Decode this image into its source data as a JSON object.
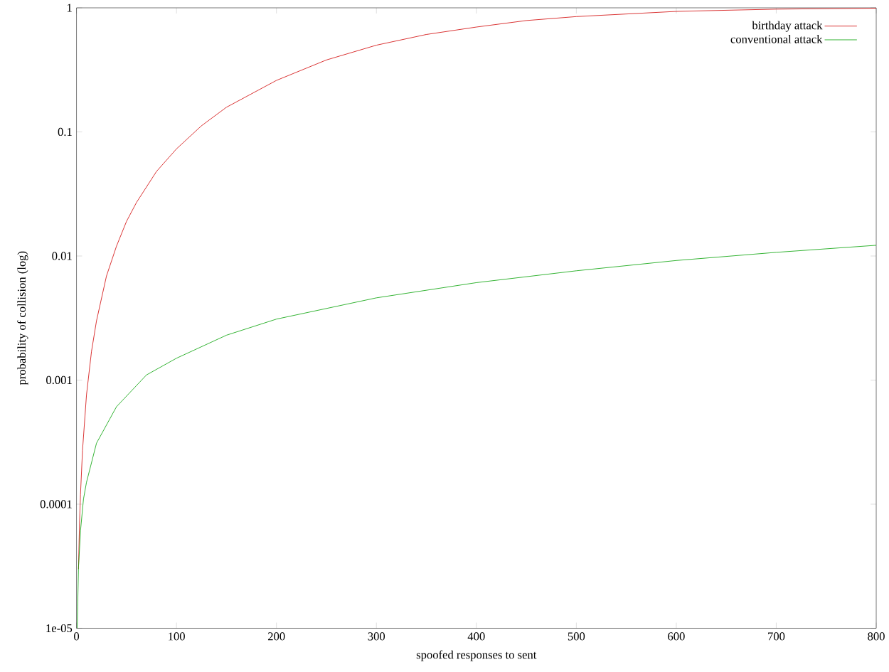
{
  "chart_data": {
    "type": "line",
    "xlabel": "spoofed responses to sent",
    "ylabel": "probability of collision (log)",
    "log": "y",
    "legend": "top right",
    "grid": false,
    "xlim": [
      0,
      800
    ],
    "ylim": [
      1e-05,
      1
    ],
    "xticks": [
      0,
      100,
      200,
      300,
      400,
      500,
      600,
      700,
      800
    ],
    "yticks": [
      {
        "value": 1e-05,
        "label": "1e-05"
      },
      {
        "value": 0.0001,
        "label": "0.0001"
      },
      {
        "value": 0.001,
        "label": "0.001"
      },
      {
        "value": 0.01,
        "label": "0.01"
      },
      {
        "value": 0.1,
        "label": "0.1"
      },
      {
        "value": 1,
        "label": "1"
      }
    ],
    "series": [
      {
        "name": "birthday attack",
        "color": "#d00000",
        "x": [
          2,
          3,
          4,
          6,
          10,
          15,
          20,
          30,
          40,
          50,
          60,
          80,
          100,
          125,
          150,
          200,
          250,
          300,
          350,
          400,
          450,
          500,
          600,
          700,
          800
        ],
        "values": [
          3e-05,
          7e-05,
          0.00012,
          0.00027,
          0.00076,
          0.0017,
          0.003,
          0.0069,
          0.012,
          0.019,
          0.027,
          0.048,
          0.073,
          0.112,
          0.158,
          0.26,
          0.38,
          0.5,
          0.61,
          0.7,
          0.79,
          0.85,
          0.936,
          0.976,
          0.993
        ]
      },
      {
        "name": "conventional attack",
        "color": "#00a000",
        "x": [
          0.7,
          2,
          4,
          7,
          10,
          20,
          40,
          70,
          100,
          150,
          200,
          300,
          400,
          500,
          600,
          700,
          800
        ],
        "values": [
          1e-05,
          3.1e-05,
          6.1e-05,
          0.00011,
          0.00015,
          0.00031,
          0.00061,
          0.0011,
          0.0015,
          0.0023,
          0.0031,
          0.0046,
          0.0061,
          0.0076,
          0.0092,
          0.0107,
          0.0122
        ]
      }
    ]
  }
}
